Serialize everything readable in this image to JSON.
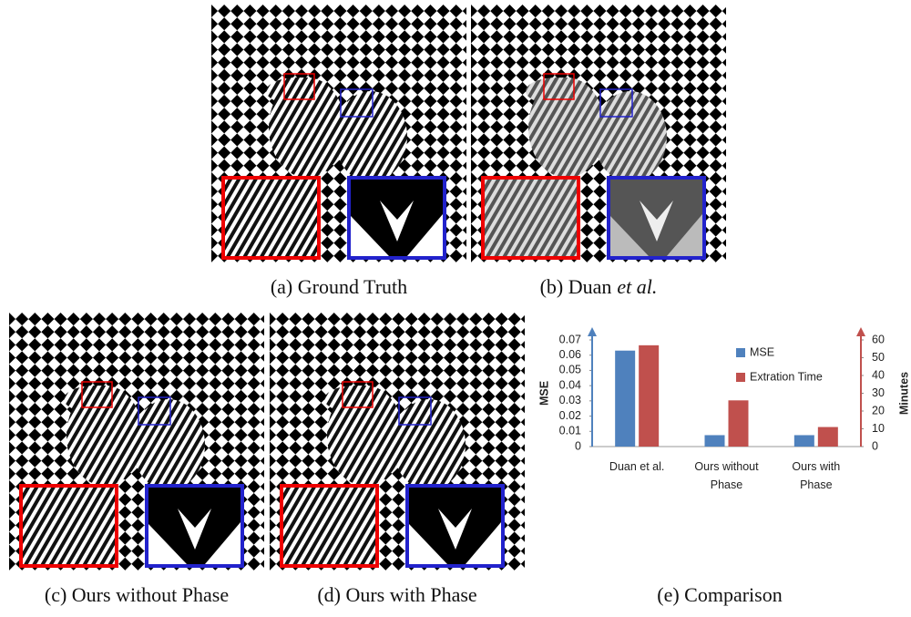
{
  "captions": [
    {
      "text": "(a) Ground Truth"
    },
    {
      "text": "(b) Duan",
      "emph": "et al."
    },
    {
      "text": "(c) Ours without Phase"
    },
    {
      "text": "(d) Ours with Phase"
    },
    {
      "text": "(e) Comparison"
    }
  ],
  "chart_data": {
    "type": "bar",
    "categories": [
      "Duan et al.",
      "Ours without Phase",
      "Ours with Phase"
    ],
    "series": [
      {
        "name": "MSE",
        "color": "#4f81bd",
        "values": [
          0.063,
          0.0075,
          0.0075
        ]
      },
      {
        "name": "Extration Time",
        "color": "#c0504d",
        "values": [
          57,
          26,
          11
        ],
        "axis": "y2"
      }
    ],
    "ylabel": "MSE",
    "y2label": "Minutes",
    "ylim": [
      0,
      0.07
    ],
    "yticks": [
      0,
      0.01,
      0.02,
      0.03,
      0.04,
      0.05,
      0.06,
      0.07
    ],
    "y2lim": [
      0,
      60
    ],
    "y2ticks": [
      0,
      10,
      20,
      30,
      40,
      50,
      60
    ]
  }
}
